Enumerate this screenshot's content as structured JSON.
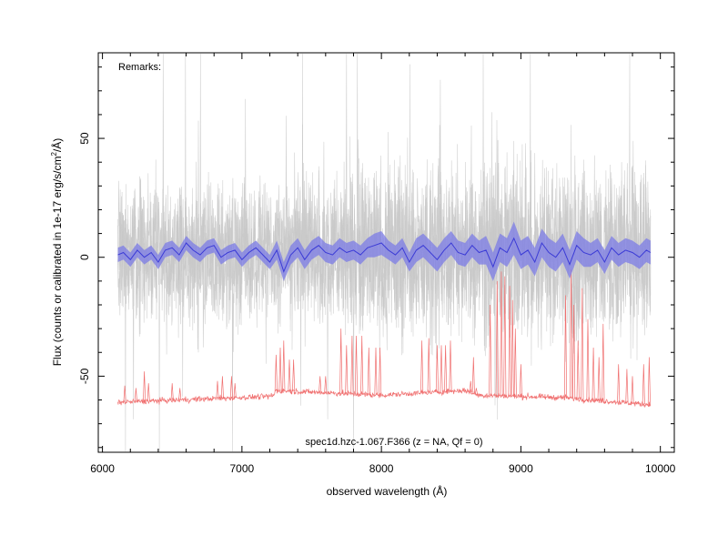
{
  "chart_data": {
    "type": "line",
    "title": "spec1d.hzc-1.067.F366 (z =   NA, Qf = 0)",
    "remarks_label": "Remarks:",
    "xlabel": "observed wavelength (Å)",
    "ylabel_main": "Flux (counts or calibrated in 1e-17 erg/s/cm",
    "ylabel_sup": "2",
    "ylabel_end": "/Å)",
    "xlim": [
      5970,
      10100
    ],
    "ylim": [
      -82,
      86
    ],
    "x_ticks": [
      6000,
      7000,
      8000,
      9000,
      10000
    ],
    "x_tick_labels": [
      "6000",
      "7000",
      "8000",
      "9000",
      "10000"
    ],
    "y_ticks": [
      -50,
      0,
      50
    ],
    "y_tick_labels": [
      "-50",
      "0",
      "50"
    ],
    "x_minor_step": 200,
    "y_minor_step": 10,
    "grid": false,
    "series": [
      {
        "kind": "raw-spectrum",
        "color": "#c8c8c8",
        "x_range": [
          6110,
          9930
        ],
        "y_center": 2,
        "y_spread_1sigma": 14
      },
      {
        "kind": "smoothed-flux",
        "color": "#3b3bd6",
        "band_color": "#7b7be6",
        "x": [
          6110,
          6150,
          6200,
          6250,
          6300,
          6350,
          6400,
          6450,
          6500,
          6550,
          6600,
          6650,
          6700,
          6750,
          6800,
          6850,
          6900,
          6950,
          7000,
          7050,
          7100,
          7150,
          7200,
          7250,
          7300,
          7350,
          7400,
          7450,
          7500,
          7550,
          7600,
          7650,
          7700,
          7750,
          7800,
          7850,
          7900,
          7950,
          8000,
          8050,
          8100,
          8150,
          8200,
          8250,
          8300,
          8350,
          8400,
          8450,
          8500,
          8550,
          8600,
          8650,
          8700,
          8750,
          8800,
          8850,
          8900,
          8950,
          9000,
          9050,
          9100,
          9150,
          9200,
          9250,
          9300,
          9350,
          9400,
          9450,
          9500,
          9550,
          9600,
          9650,
          9700,
          9750,
          9800,
          9850,
          9900,
          9930
        ],
        "y": [
          1,
          2,
          -1,
          3,
          0,
          2,
          -2,
          3,
          4,
          1,
          6,
          3,
          1,
          4,
          5,
          0,
          2,
          3,
          -1,
          2,
          4,
          1,
          -2,
          3,
          -6,
          1,
          4,
          -1,
          3,
          5,
          2,
          1,
          4,
          2,
          3,
          1,
          4,
          5,
          6,
          3,
          1,
          4,
          -2,
          3,
          5,
          2,
          -1,
          3,
          6,
          2,
          1,
          5,
          2,
          3,
          -4,
          4,
          2,
          8,
          1,
          3,
          -2,
          6,
          2,
          0,
          4,
          -3,
          5,
          2,
          1,
          3,
          -2,
          4,
          1,
          3,
          2,
          0,
          3,
          2
        ],
        "band_halfwidth": [
          3,
          3,
          3,
          3,
          3,
          3,
          3,
          3,
          3,
          3,
          3,
          3,
          3,
          3,
          3,
          3,
          3,
          3,
          3,
          3,
          3,
          3,
          3,
          4,
          4,
          4,
          4,
          4,
          4,
          4,
          4,
          4,
          4,
          4,
          4,
          4,
          4,
          5,
          5,
          4,
          4,
          4,
          4,
          5,
          5,
          5,
          5,
          5,
          5,
          5,
          5,
          5,
          5,
          6,
          6,
          6,
          6,
          7,
          6,
          6,
          6,
          6,
          6,
          6,
          6,
          6,
          6,
          6,
          5,
          5,
          5,
          5,
          5,
          5,
          5,
          5,
          5,
          5
        ]
      },
      {
        "kind": "sky-spectrum",
        "color": "#f07070",
        "baseline": [
          [
            6110,
            -61
          ],
          [
            7200,
            -58.5
          ],
          [
            7230,
            -58
          ],
          [
            7240,
            -56
          ],
          [
            8000,
            -58
          ],
          [
            8300,
            -57
          ],
          [
            8600,
            -56
          ],
          [
            8700,
            -58
          ],
          [
            9300,
            -59
          ],
          [
            9930,
            -62
          ]
        ],
        "lines": [
          [
            6160,
            -54
          ],
          [
            6240,
            -55
          ],
          [
            6300,
            -48
          ],
          [
            6330,
            -53
          ],
          [
            6500,
            -53
          ],
          [
            6555,
            -55
          ],
          [
            6825,
            -52
          ],
          [
            6860,
            -50
          ],
          [
            6925,
            -50
          ],
          [
            6950,
            -53
          ],
          [
            7245,
            -41
          ],
          [
            7275,
            -38
          ],
          [
            7300,
            -35
          ],
          [
            7340,
            -43
          ],
          [
            7370,
            -43
          ],
          [
            7560,
            -50
          ],
          [
            7600,
            -50
          ],
          [
            7710,
            -30
          ],
          [
            7750,
            -37
          ],
          [
            7790,
            -33
          ],
          [
            7820,
            -33
          ],
          [
            7860,
            -33
          ],
          [
            7910,
            -38
          ],
          [
            7960,
            -38
          ],
          [
            7990,
            -38
          ],
          [
            8290,
            -35
          ],
          [
            8340,
            -34
          ],
          [
            8400,
            -37
          ],
          [
            8430,
            -37
          ],
          [
            8460,
            -37
          ],
          [
            8495,
            -35
          ],
          [
            8640,
            -52
          ],
          [
            8660,
            -42
          ],
          [
            8680,
            -55
          ],
          [
            8780,
            -20
          ],
          [
            8830,
            -10
          ],
          [
            8860,
            -6
          ],
          [
            8885,
            -8
          ],
          [
            8920,
            -12
          ],
          [
            8940,
            -18
          ],
          [
            8960,
            -30
          ],
          [
            9000,
            -45
          ],
          [
            9320,
            -16
          ],
          [
            9360,
            -5
          ],
          [
            9380,
            -20
          ],
          [
            9410,
            -35
          ],
          [
            9440,
            -13
          ],
          [
            9480,
            -26
          ],
          [
            9520,
            -38
          ],
          [
            9560,
            -42
          ],
          [
            9590,
            -28
          ],
          [
            9700,
            -45
          ],
          [
            9760,
            -47
          ],
          [
            9800,
            -50
          ],
          [
            9880,
            -45
          ],
          [
            9920,
            -42
          ]
        ]
      }
    ]
  }
}
